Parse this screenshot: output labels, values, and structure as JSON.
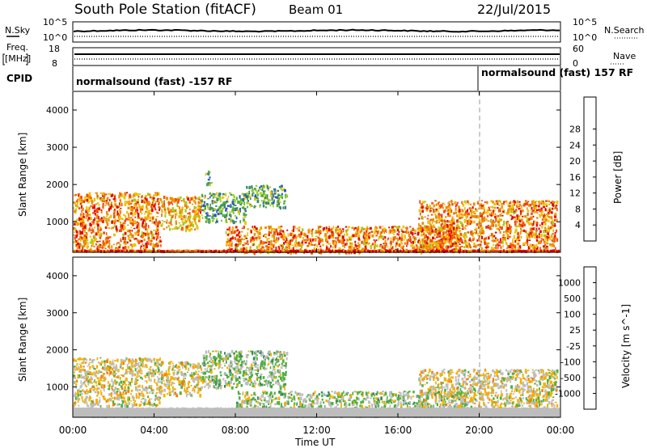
{
  "header": {
    "title": "South Pole Station (fitACF)",
    "beam": "Beam 01",
    "date": "22/Jul/2015"
  },
  "time_axis": {
    "label": "Time UT",
    "ticks": [
      "00:00",
      "04:00",
      "08:00",
      "12:00",
      "16:00",
      "20:00",
      "00:00"
    ]
  },
  "noise_panel": {
    "left_label": "N.Sky",
    "right_label": "N.Search",
    "left_ticks": [
      "10^5",
      "10^0"
    ],
    "right_ticks": [
      "10^5",
      "10^0"
    ]
  },
  "freq_panel": {
    "left_label_1": "Freq.",
    "left_label_2": "[MHz]",
    "right_label": "Nave",
    "left_ticks": [
      "18",
      "8"
    ],
    "right_ticks": [
      "60",
      "0"
    ]
  },
  "cpid_panel": {
    "label": "CPID",
    "segments": [
      {
        "start_hour": 0,
        "text": "normalsound (fast) -157 RF"
      },
      {
        "start_hour": 20,
        "text": "normalsound (fast) 157 RF"
      }
    ]
  },
  "power_panel": {
    "ylabel": "Slant Range [km]",
    "yticks": [
      "1000",
      "2000",
      "3000",
      "4000"
    ],
    "colorbar_label": "Power [dB]",
    "colorbar_ticks": [
      "4",
      "8",
      "12",
      "16",
      "20",
      "24",
      "28"
    ],
    "colorbar_colors": [
      "#0018d8",
      "#2a55c8",
      "#3a8a6a",
      "#4fae3a",
      "#9fd020",
      "#f0c000",
      "#f08a00",
      "#f05010",
      "#e00000"
    ]
  },
  "velocity_panel": {
    "ylabel": "Slant Range [km]",
    "yticks": [
      "1000",
      "2000",
      "3000",
      "4000"
    ],
    "colorbar_label": "Velocity [m s^-1]",
    "colorbar_ticks": [
      "1000",
      "500",
      "100",
      "25",
      "-25",
      "-100",
      "-500",
      "-1000"
    ],
    "colorbar_colors": [
      "#1a35c8",
      "#2f6aa8",
      "#3a8a5a",
      "#4fb040",
      "#bdbdbd",
      "#f3b000",
      "#f08000",
      "#f04000",
      "#e00000"
    ]
  },
  "chart_data": {
    "type": "heatmap",
    "title": "South Pole Station (fitACF)",
    "xlabel": "Time UT",
    "x_range_hours": [
      0,
      24
    ],
    "panels": [
      {
        "name": "Power",
        "unit": "dB",
        "ylabel": "Slant Range [km]",
        "ylim": [
          180,
          4500
        ],
        "colorbar_range": [
          0,
          32
        ],
        "echo_regions": [
          {
            "t_start": 0.0,
            "t_end": 4.3,
            "r_min": 300,
            "r_max": 1800,
            "level": 24
          },
          {
            "t_start": 4.3,
            "t_end": 6.3,
            "r_min": 800,
            "r_max": 1700,
            "level": 22
          },
          {
            "t_start": 6.3,
            "t_end": 8.5,
            "r_min": 1000,
            "r_max": 1800,
            "level": 12
          },
          {
            "t_start": 6.5,
            "t_end": 6.8,
            "r_min": 2000,
            "r_max": 2400,
            "level": 12
          },
          {
            "t_start": 8.5,
            "t_end": 10.5,
            "r_min": 1400,
            "r_max": 2000,
            "level": 12
          },
          {
            "t_start": 7.5,
            "t_end": 19.0,
            "r_min": 200,
            "r_max": 900,
            "level": 24
          },
          {
            "t_start": 17.0,
            "t_end": 23.8,
            "r_min": 300,
            "r_max": 1600,
            "level": 24
          },
          {
            "t_start": 0.0,
            "t_end": 24.0,
            "r_min": 180,
            "r_max": 260,
            "level": 28
          }
        ]
      },
      {
        "name": "Velocity",
        "unit": "m s^-1",
        "ylabel": "Slant Range [km]",
        "ylim": [
          180,
          4500
        ],
        "colorbar_range": [
          -1000,
          1000
        ],
        "echo_regions": [
          {
            "t_start": 0.0,
            "t_end": 4.3,
            "r_min": 500,
            "r_max": 1800,
            "level": 100
          },
          {
            "t_start": 4.3,
            "t_end": 6.3,
            "r_min": 800,
            "r_max": 1700,
            "level": 100
          },
          {
            "t_start": 6.3,
            "t_end": 10.5,
            "r_min": 1000,
            "r_max": 2000,
            "level": -100
          },
          {
            "t_start": 8.0,
            "t_end": 19.5,
            "r_min": 300,
            "r_max": 900,
            "level": -100
          },
          {
            "t_start": 17.0,
            "t_end": 23.8,
            "r_min": 300,
            "r_max": 1500,
            "level": 100
          },
          {
            "t_start": 0.0,
            "t_end": 24.0,
            "r_min": 180,
            "r_max": 450,
            "level": 0
          }
        ]
      }
    ]
  }
}
